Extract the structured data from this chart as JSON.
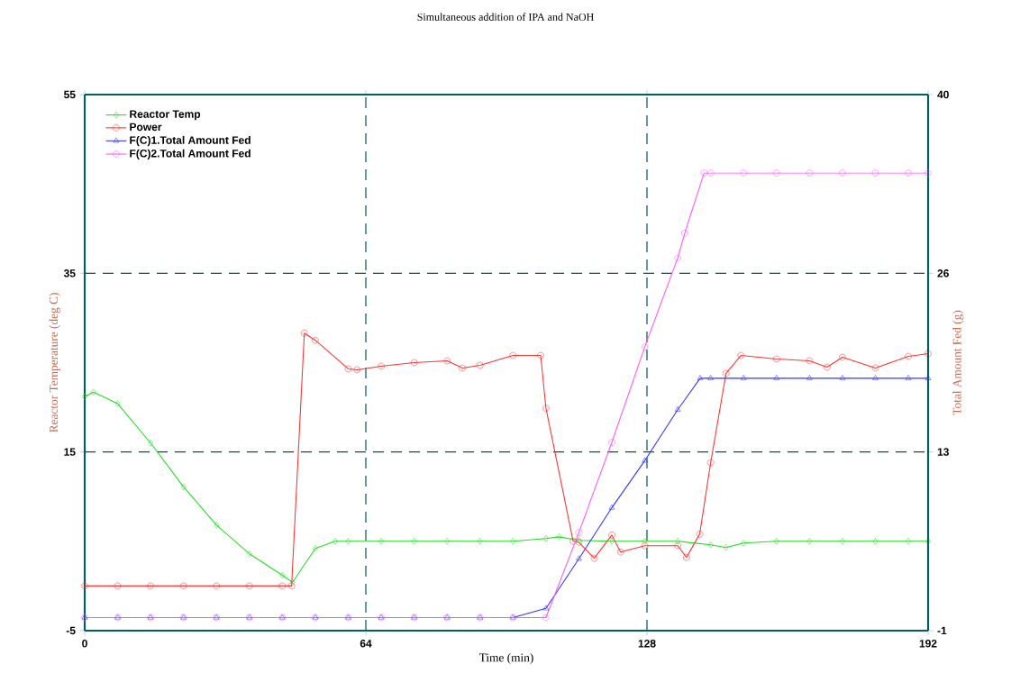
{
  "chart_data": {
    "type": "line",
    "title": "Simultaneous addition of IPA and NaOH",
    "xlabel": "Time (min)",
    "ylabel": "Reactor Temperature (deg C)",
    "y2label": "Total Amount Fed (g)",
    "xlim": [
      0,
      192
    ],
    "xticks": [
      0,
      64,
      128,
      192
    ],
    "ylim": [
      -5,
      55
    ],
    "yticks": [
      -5,
      15,
      35,
      55
    ],
    "y2lim": [
      -1,
      40
    ],
    "y2ticks": [
      -1,
      {
        "value": 12.67,
        "label": "13"
      },
      {
        "value": 26.33,
        "label": "26"
      },
      40
    ],
    "grid": true,
    "legend": "top left",
    "line_style": "solid",
    "series": [
      {
        "name": "Reactor Temp",
        "color": "#22dd22",
        "marker": "diamond",
        "axis": "y",
        "x": [
          0,
          2,
          7.5,
          15,
          22.5,
          30,
          37.5,
          45,
          47.3,
          52.5,
          57,
          60,
          67.5,
          75,
          82.5,
          90,
          97.5,
          105,
          108,
          112.5,
          120,
          127.5,
          135,
          142.5,
          146,
          150,
          157.5,
          165,
          172.5,
          180,
          187.5,
          192
        ],
        "values": [
          21.2,
          21.7,
          20.4,
          16.0,
          11.1,
          6.8,
          3.6,
          1.2,
          0.4,
          4.2,
          5.0,
          5.0,
          5.0,
          5.0,
          5.0,
          5.0,
          5.0,
          5.3,
          5.5,
          5.1,
          5.0,
          5.0,
          5.0,
          4.6,
          4.3,
          4.8,
          5.0,
          5.0,
          5.0,
          5.0,
          5.0,
          5.0
        ]
      },
      {
        "name": "Power",
        "color": "#ff3333",
        "marker": "circle",
        "axis": "y",
        "x": [
          0,
          7.5,
          15,
          22.5,
          30,
          37.5,
          45,
          47.1,
          50,
          52.5,
          60,
          62,
          67.5,
          75,
          82.5,
          86,
          90,
          97.5,
          103.8,
          105,
          111.2,
          112.5,
          116,
          120,
          122,
          127.5,
          135,
          137,
          140,
          142.5,
          146,
          149.4,
          157.5,
          165,
          169,
          172.5,
          180,
          187.5,
          192
        ],
        "values": [
          0,
          0,
          0,
          0,
          0,
          0,
          0,
          0,
          28.3,
          27.5,
          24.3,
          24.2,
          24.6,
          25.0,
          25.2,
          24.4,
          24.7,
          25.8,
          25.8,
          19.9,
          5.0,
          4.9,
          3.1,
          5.7,
          3.8,
          4.5,
          4.5,
          3.2,
          5.8,
          13.8,
          23.8,
          25.8,
          25.4,
          25.2,
          24.5,
          25.6,
          24.4,
          25.7,
          26.0
        ]
      },
      {
        "name": "F(C)1.Total Amount Fed",
        "color": "#3333ff",
        "marker": "triangle",
        "axis": "y2",
        "x": [
          0,
          7.5,
          15,
          22.5,
          30,
          37.5,
          45,
          52.5,
          60,
          67.5,
          75,
          82.5,
          90,
          97.5,
          105,
          112.5,
          120,
          127.5,
          135,
          140.1,
          142.5,
          150,
          157.5,
          165,
          172.5,
          180,
          187.5,
          192
        ],
        "values": [
          0,
          0,
          0,
          0,
          0,
          0,
          0,
          0,
          0,
          0,
          0,
          0,
          0,
          0,
          0.7,
          4.5,
          8.4,
          12.0,
          15.9,
          18.3,
          18.3,
          18.3,
          18.3,
          18.3,
          18.3,
          18.3,
          18.3,
          18.3
        ]
      },
      {
        "name": "F(C)2.Total Amount Fed",
        "color": "#ff55ff",
        "marker": "circle",
        "axis": "y2",
        "x": [
          0,
          7.5,
          15,
          22.5,
          30,
          37.5,
          45,
          52.5,
          60,
          67.5,
          75,
          82.5,
          90,
          97.5,
          105,
          112.5,
          120,
          127.5,
          135,
          136.6,
          141,
          142.5,
          150,
          157.5,
          165,
          172.5,
          180,
          187.5,
          192
        ],
        "values": [
          0,
          0,
          0,
          0,
          0,
          0,
          0,
          0,
          0,
          0,
          0,
          0,
          0,
          0,
          0,
          6.5,
          13.4,
          20.7,
          27.5,
          29.4,
          34.0,
          34.0,
          34.0,
          34.0,
          34.0,
          34.0,
          34.0,
          34.0,
          34.0
        ]
      }
    ]
  }
}
